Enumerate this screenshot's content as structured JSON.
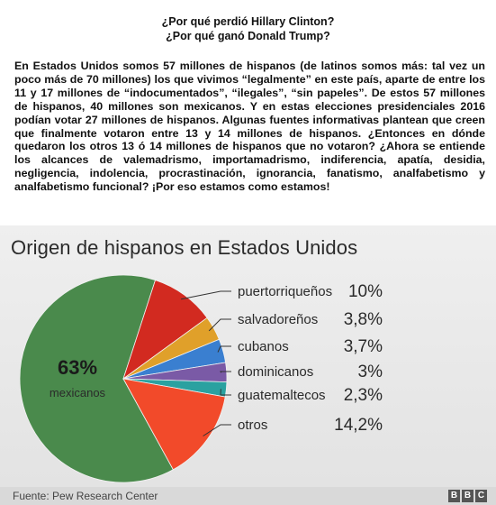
{
  "headline": {
    "line1": "¿Por qué perdió Hillary Clinton?",
    "line2": "¿Por qué ganó Donald Trump?"
  },
  "paragraph": "En Estados Unidos somos 57 millones de hispanos (de latinos somos más: tal vez un poco más de 70 millones) los que vivimos “legalmente” en este país, aparte de entre los 11 y 17 millones de “indocumentados”, “ilegales”, “sin papeles”. De estos 57 millones de hispanos, 40 millones son mexicanos. Y en estas elecciones presidenciales 2016 podían votar 27 millones de hispanos. Algunas fuentes informativas plantean que creen que finalmente votaron entre 13 y 14 millones de hispanos. ¿Entonces en dónde quedaron los otros 13 ó 14 millones de hispanos que no votaron? ¿Ahora se entiende los alcances de valemadrismo, importamadrismo, indiferencia, apatía, desidia, negligencia, indolencia, procrastinación, ignorancia, fanatismo, analfabetismo y analfabetismo funcional? ¡Por eso estamos como estamos!",
  "chart_data": {
    "type": "pie",
    "title": "Origen de hispanos en Estados Unidos",
    "legend_position": "right",
    "slices": [
      {
        "label": "mexicanos",
        "value": 63,
        "display": "63%",
        "color": "#4a8a4c"
      },
      {
        "label": "puertorriqueños",
        "value": 10,
        "display": "10%",
        "color": "#d22a20"
      },
      {
        "label": "salvadoreños",
        "value": 3.8,
        "display": "3,8%",
        "color": "#e0a02a"
      },
      {
        "label": "cubanos",
        "value": 3.7,
        "display": "3,7%",
        "color": "#3a7fd0"
      },
      {
        "label": "dominicanos",
        "value": 3,
        "display": "3%",
        "color": "#7a5aa6"
      },
      {
        "label": "guatemaltecos",
        "value": 2.3,
        "display": "2,3%",
        "color": "#2aa1a0"
      },
      {
        "label": "otros",
        "value": 14.2,
        "display": "14,2%",
        "color": "#f24a2a"
      }
    ]
  },
  "footer": {
    "source": "Fuente: Pew Research Center",
    "logo_letters": [
      "B",
      "B",
      "C"
    ]
  }
}
